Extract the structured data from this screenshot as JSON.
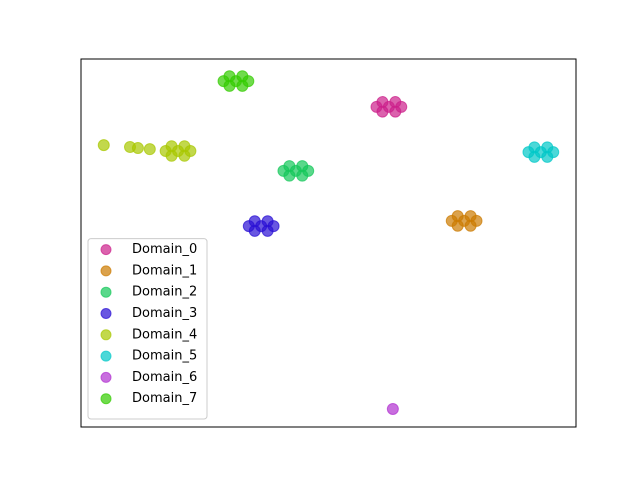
{
  "chart_data": {
    "type": "scatter",
    "xlim": [
      0,
      100
    ],
    "ylim": [
      0,
      100
    ],
    "legend": "lower left",
    "opacity": 0.7,
    "series": [
      {
        "name": "Domain_0",
        "color": "#cc1f8a",
        "x": [
          62.2,
          59.7,
          64.7,
          60.9,
          63.5,
          60.9,
          63.5
        ],
        "y": [
          87.0,
          87.0,
          87.0,
          88.3,
          88.3,
          85.7,
          85.7
        ]
      },
      {
        "name": "Domain_1",
        "color": "#cc7a00",
        "x": [
          77.4,
          74.9,
          79.9,
          76.1,
          78.7,
          76.1,
          78.7
        ],
        "y": [
          56.0,
          56.0,
          56.0,
          57.3,
          57.3,
          54.7,
          54.7
        ]
      },
      {
        "name": "Domain_2",
        "color": "#14c85a",
        "x": [
          43.4,
          40.9,
          45.9,
          42.1,
          44.7,
          42.1,
          44.7
        ],
        "y": [
          69.6,
          69.6,
          69.6,
          70.9,
          70.9,
          68.3,
          68.3
        ]
      },
      {
        "name": "Domain_3",
        "color": "#2a0fd4",
        "x": [
          36.4,
          33.9,
          38.9,
          35.1,
          37.7,
          35.1,
          37.7
        ],
        "y": [
          54.6,
          54.6,
          54.6,
          55.9,
          55.9,
          53.3,
          53.3
        ]
      },
      {
        "name": "Domain_4",
        "color": "#a8c800",
        "x": [
          19.6,
          17.1,
          22.1,
          18.3,
          20.9,
          18.3,
          20.9,
          4.6,
          9.9,
          11.5,
          13.9
        ],
        "y": [
          75.0,
          75.0,
          75.0,
          76.3,
          76.3,
          73.7,
          73.7,
          76.6,
          76.1,
          75.8,
          75.5
        ]
      },
      {
        "name": "Domain_5",
        "color": "#00c8c8",
        "x": [
          92.9,
          90.4,
          95.4,
          91.6,
          94.2,
          91.6,
          94.2
        ],
        "y": [
          74.7,
          74.7,
          74.7,
          76.0,
          76.0,
          73.4,
          73.4
        ]
      },
      {
        "name": "Domain_6",
        "color": "#b030d0",
        "x": [
          63.0
        ],
        "y": [
          4.9
        ]
      },
      {
        "name": "Domain_7",
        "color": "#33cc00",
        "x": [
          31.3,
          28.8,
          33.8,
          30.0,
          32.6,
          30.0,
          32.6
        ],
        "y": [
          94.0,
          94.0,
          94.0,
          95.3,
          95.3,
          92.7,
          92.7
        ]
      }
    ]
  }
}
